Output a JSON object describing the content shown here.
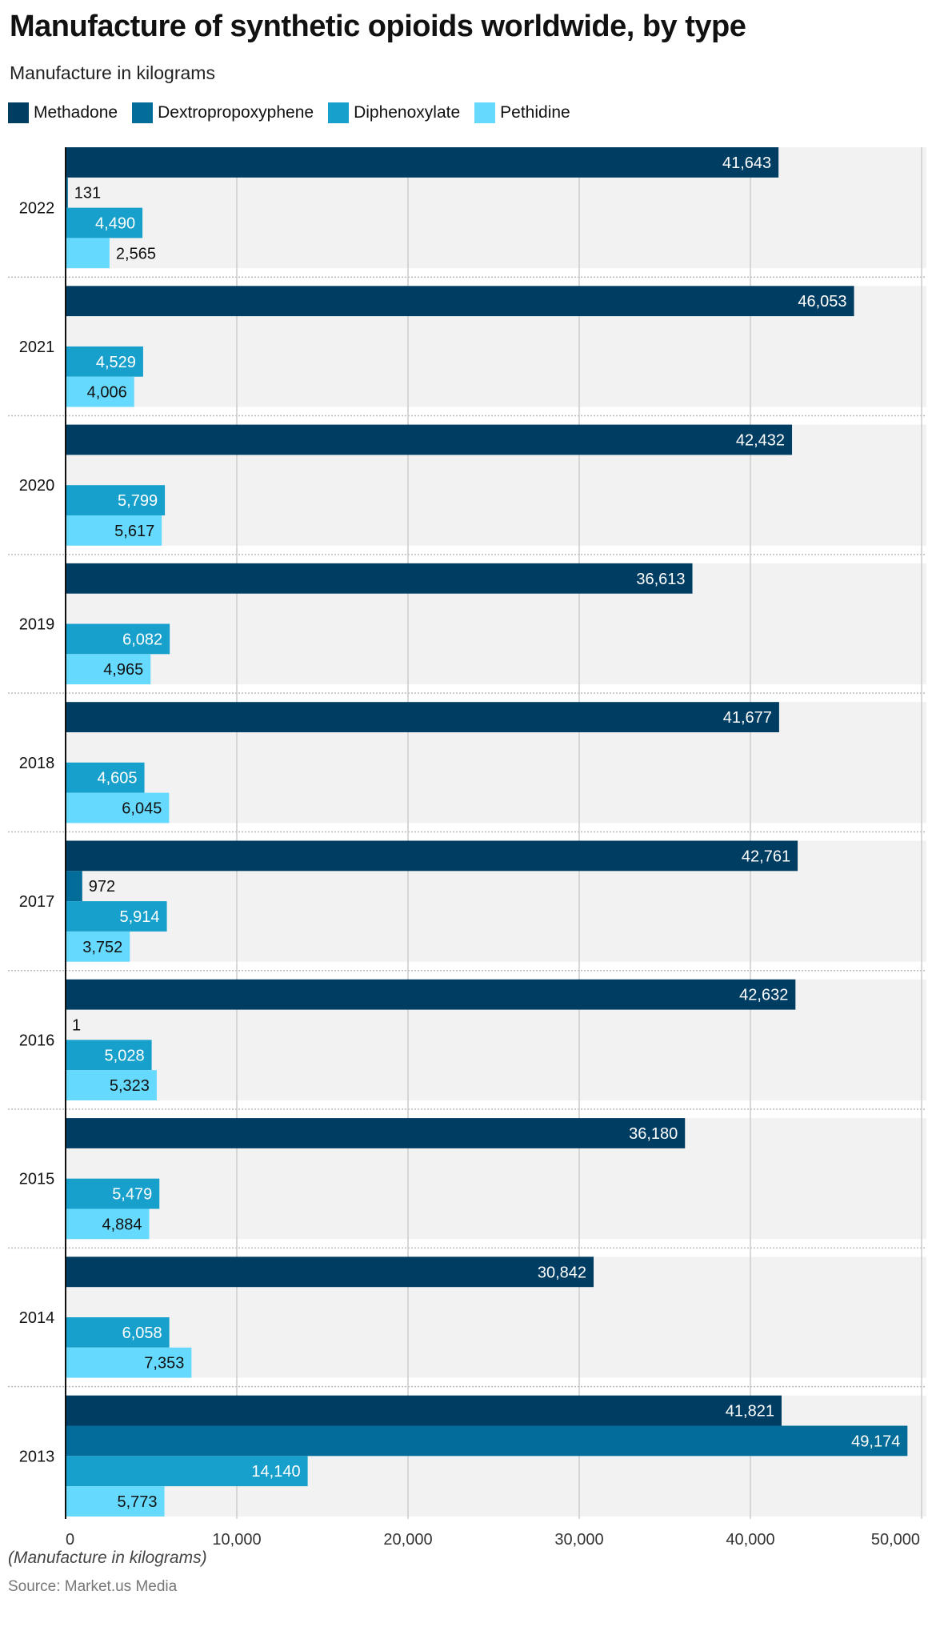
{
  "chart_data": {
    "type": "bar",
    "orientation": "horizontal",
    "title": "Manufacture of synthetic opioids worldwide, by type",
    "subtitle": "Manufacture in kilograms",
    "categories": [
      "2022",
      "2021",
      "2020",
      "2019",
      "2018",
      "2017",
      "2016",
      "2015",
      "2014",
      "2013"
    ],
    "series": [
      {
        "name": "Methadone",
        "color": "#003d63",
        "values": [
          41643,
          46053,
          42432,
          36613,
          41677,
          42761,
          42632,
          36180,
          30842,
          41821
        ]
      },
      {
        "name": "Dextropropoxyphene",
        "color": "#036c98",
        "values": [
          131,
          null,
          null,
          null,
          null,
          972,
          1,
          null,
          null,
          49174
        ]
      },
      {
        "name": "Diphenoxylate",
        "color": "#17a0cc",
        "values": [
          4490,
          4529,
          5799,
          6082,
          4605,
          5914,
          5028,
          5479,
          6058,
          14140
        ]
      },
      {
        "name": "Pethidine",
        "color": "#66d9ff",
        "values": [
          2565,
          4006,
          5617,
          4965,
          6045,
          3752,
          5323,
          4884,
          7353,
          5773
        ]
      }
    ],
    "xlim": [
      0,
      50000
    ],
    "xticks": [
      "0",
      "10,000",
      "20,000",
      "30,000",
      "40,000",
      "50,000"
    ],
    "grid": true,
    "legend_position": "top-left",
    "footnote": "(Manufacture in kilograms)",
    "source": "Source: Market.us Media"
  }
}
